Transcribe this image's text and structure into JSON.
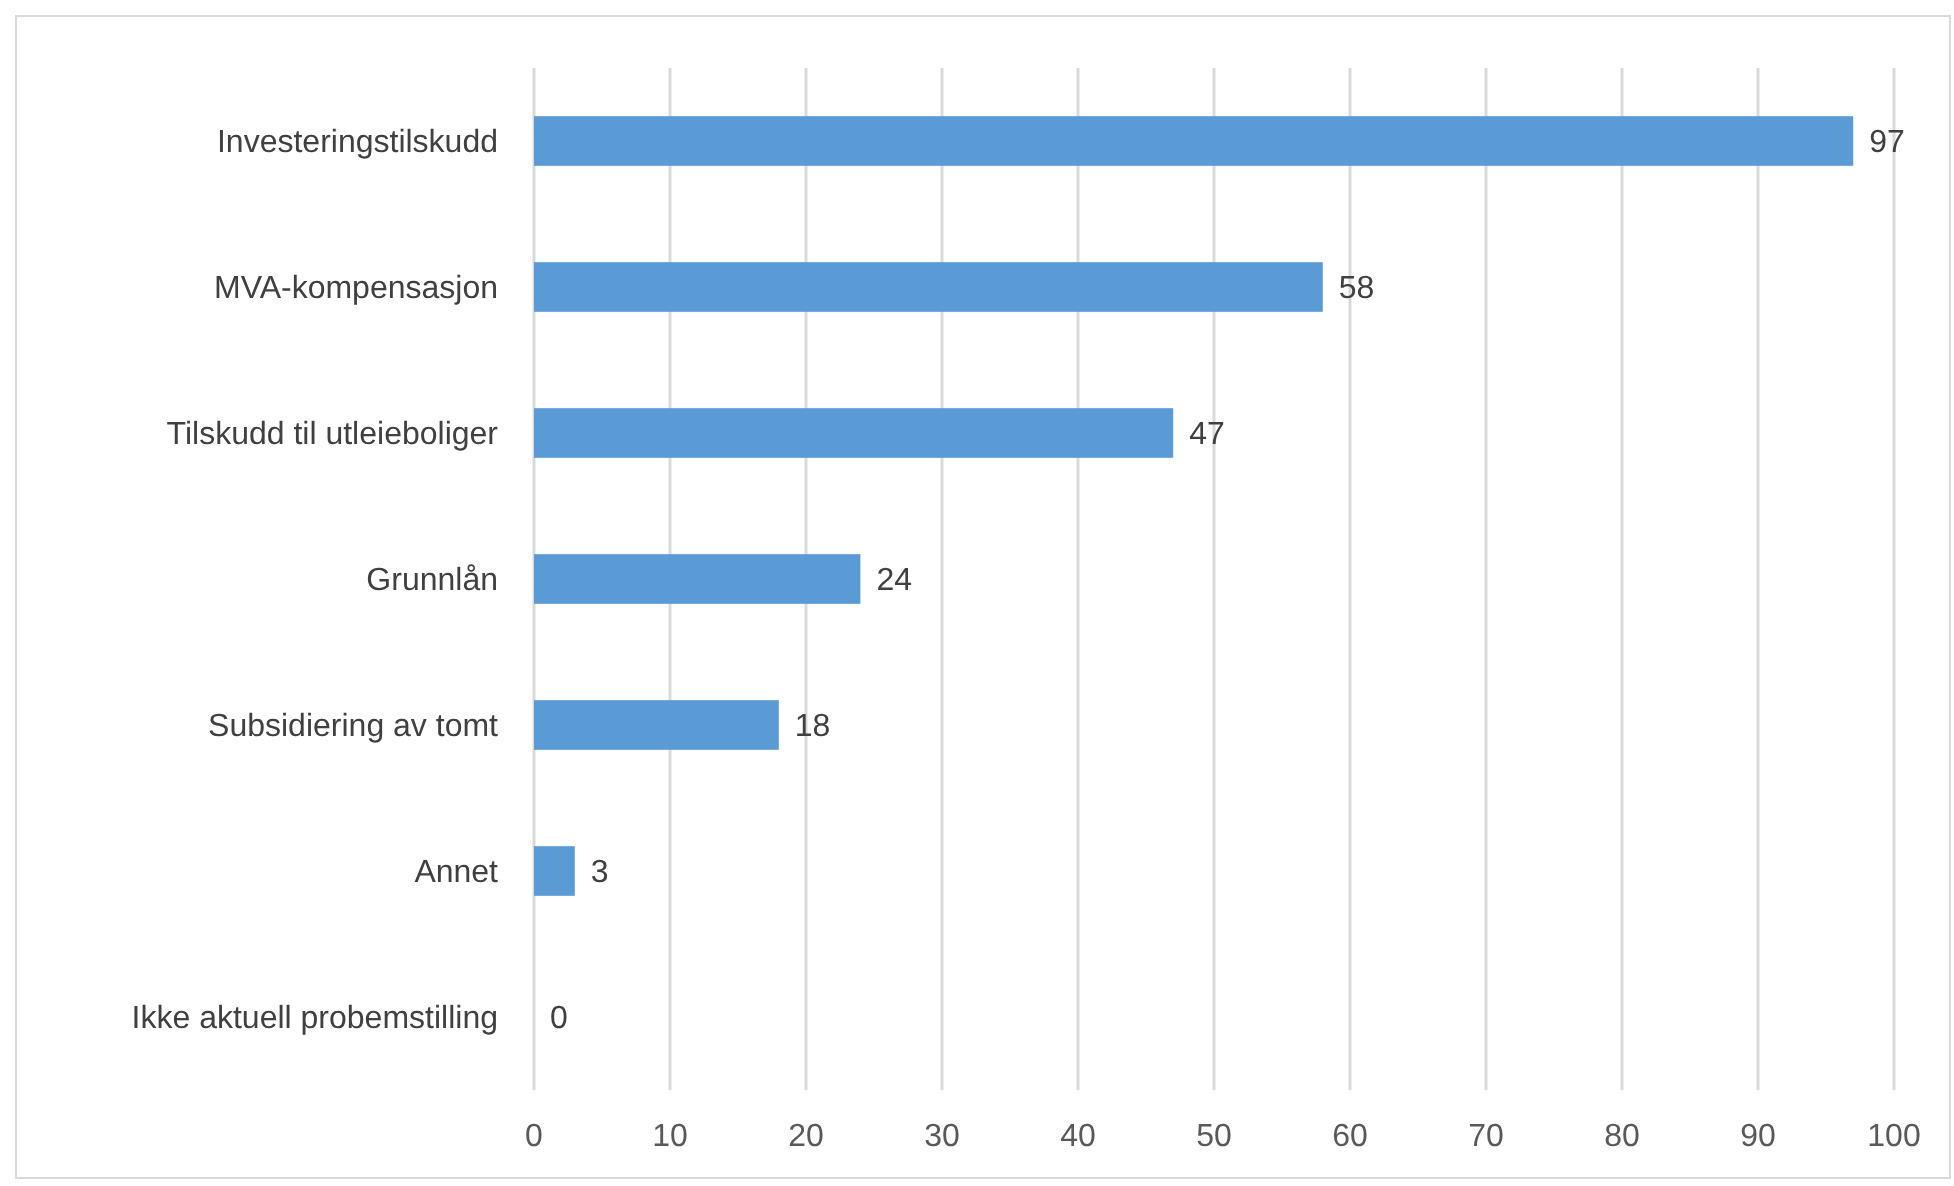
{
  "chart_data": {
    "type": "bar",
    "orientation": "horizontal",
    "categories": [
      "Investeringstilskudd",
      "MVA-kompensasjon",
      "Tilskudd til utleieboliger",
      "Grunnlån",
      "Subsidiering av tomt",
      "Annet",
      "Ikke aktuell probemstilling"
    ],
    "values": [
      97,
      58,
      47,
      24,
      18,
      3,
      0
    ],
    "color": "#5b9bd5",
    "data_labels": true,
    "xlim": [
      0,
      100
    ],
    "xticks": [
      0,
      10,
      20,
      30,
      40,
      50,
      60,
      70,
      80,
      90,
      100
    ],
    "grid": "x"
  }
}
